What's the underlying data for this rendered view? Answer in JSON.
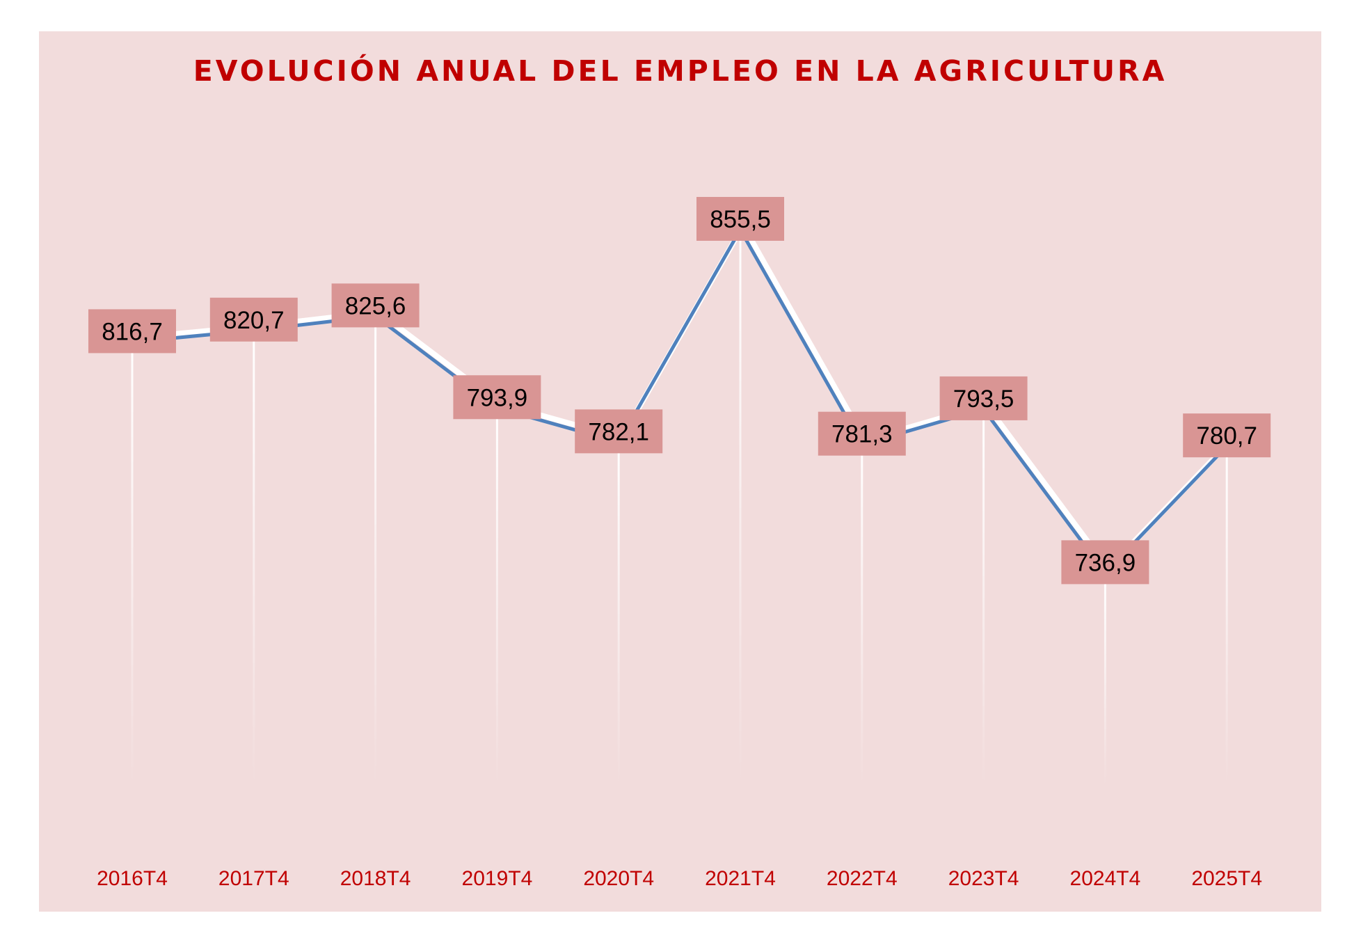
{
  "chart_data": {
    "type": "line",
    "title": "EVOLUCIÓN ANUAL DEL EMPLEO EN LA AGRICULTURA",
    "categories": [
      "2016T4",
      "2017T4",
      "2018T4",
      "2019T4",
      "2020T4",
      "2021T4",
      "2022T4",
      "2023T4",
      "2024T4",
      "2025T4"
    ],
    "values": [
      816.7,
      820.7,
      825.6,
      793.9,
      782.1,
      855.5,
      781.3,
      793.5,
      736.9,
      780.7
    ],
    "data_labels": [
      "816,7",
      "820,7",
      "825,6",
      "793,9",
      "782,1",
      "855,5",
      "781,3",
      "793,5",
      "736,9",
      "780,7"
    ],
    "xlabel": "",
    "ylabel": "",
    "grid": false,
    "legend": "none",
    "colors": {
      "background": "#f2dcdc",
      "line": "#4f81bd",
      "label_box": "#d99594",
      "title": "#c00000",
      "tick_label": "#c00000"
    }
  }
}
